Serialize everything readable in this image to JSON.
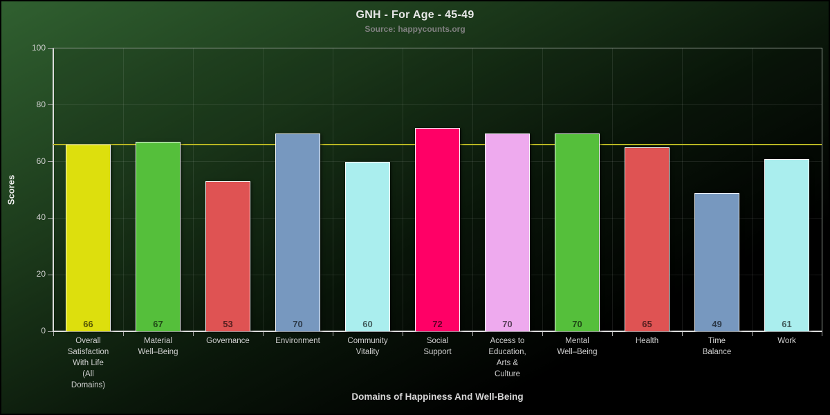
{
  "chart": {
    "background_top_color": "#306030",
    "background_bottom_color": "#000000",
    "grid_color": "rgba(255,255,255,0.09)",
    "axis_color": "#dcdcdc",
    "text_color": "#d0d0d0"
  },
  "chart_data": {
    "type": "bar",
    "title": "GNH - For Age - 45-49",
    "subtitle": "Source: happycounts.org",
    "xlabel": "Domains of Happiness And Well-Being",
    "ylabel": "Scores",
    "ylim": [
      0,
      100
    ],
    "yticks": [
      0,
      20,
      40,
      60,
      80,
      100
    ],
    "grid": true,
    "legend": "none",
    "categories": [
      "Overall Satisfaction With Life (All Domains)",
      "Material Well–Being",
      "Governance",
      "Environment",
      "Community Vitality",
      "Social Support",
      "Access to Education, Arts & Culture",
      "Mental Well–Being",
      "Health",
      "Time Balance",
      "Work"
    ],
    "category_label_lines": [
      [
        "Overall",
        "Satisfaction",
        "With Life",
        "(All",
        "Domains)"
      ],
      [
        "Material",
        "Well–Being"
      ],
      [
        "Governance"
      ],
      [
        "Environment"
      ],
      [
        "Community",
        "Vitality"
      ],
      [
        "Social",
        "Support"
      ],
      [
        "Access to",
        "Education,",
        "Arts &",
        "Culture"
      ],
      [
        "Mental",
        "Well–Being"
      ],
      [
        "Health"
      ],
      [
        "Time",
        "Balance"
      ],
      [
        "Work"
      ]
    ],
    "values": [
      66,
      67,
      53,
      70,
      60,
      72,
      70,
      70,
      65,
      49,
      61
    ],
    "bar_colors": [
      "#dddf0d",
      "#55bf3b",
      "#df5353",
      "#7798bf",
      "#aaeeee",
      "#ff0066",
      "#eeaaee",
      "#55bf3b",
      "#df5353",
      "#7798bf",
      "#aaeeee"
    ],
    "reference_line": {
      "value": 66,
      "color": "#b7b522"
    }
  }
}
